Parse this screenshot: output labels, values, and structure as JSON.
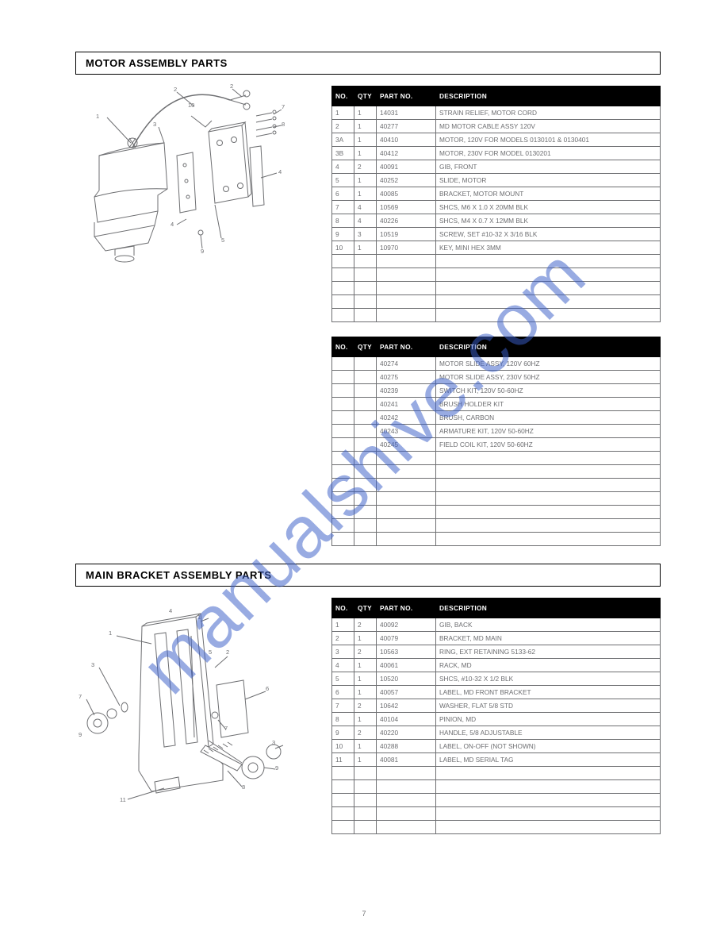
{
  "page_number": "7",
  "watermark_text": "manualshive.com",
  "watermark_color": "#3b5fc9",
  "text_color": "#6d6e71",
  "section1": {
    "title": "MOTOR ASSEMBLY PARTS",
    "table1": {
      "headers": [
        "NO.",
        "QTY",
        "PART NO.",
        "DESCRIPTION"
      ],
      "rows": [
        [
          "1",
          "1",
          "14031",
          "STRAIN RELIEF, MOTOR CORD"
        ],
        [
          "2",
          "1",
          "40277",
          "MD MOTOR CABLE ASSY 120V"
        ],
        [
          "3A",
          "1",
          "40410",
          "MOTOR, 120V FOR MODELS 0130101 & 0130401"
        ],
        [
          "3B",
          "1",
          "40412",
          "MOTOR, 230V FOR MODEL 0130201"
        ],
        [
          "4",
          "2",
          "40091",
          "GIB, FRONT"
        ],
        [
          "5",
          "1",
          "40252",
          "SLIDE, MOTOR"
        ],
        [
          "6",
          "1",
          "40085",
          "BRACKET, MOTOR MOUNT"
        ],
        [
          "7",
          "4",
          "10569",
          "SHCS, M6 X 1.0 X 20MM BLK"
        ],
        [
          "8",
          "4",
          "40226",
          "SHCS, M4 X 0.7 X 12MM BLK"
        ],
        [
          "9",
          "3",
          "10519",
          "SCREW, SET #10-32 X 3/16 BLK"
        ],
        [
          "10",
          "1",
          "10970",
          "KEY, MINI HEX 3MM"
        ],
        [
          "",
          "",
          "",
          ""
        ],
        [
          "",
          "",
          "",
          ""
        ],
        [
          "",
          "",
          "",
          ""
        ],
        [
          "",
          "",
          "",
          ""
        ],
        [
          "",
          "",
          "",
          ""
        ]
      ]
    },
    "table2": {
      "headers": [
        "NO.",
        "QTY",
        "PART NO.",
        "DESCRIPTION"
      ],
      "rows": [
        [
          "",
          "",
          "40274",
          "MOTOR SLIDE ASSY, 120V 60HZ"
        ],
        [
          "",
          "",
          "40275",
          "MOTOR SLIDE ASSY, 230V 50HZ"
        ],
        [
          "",
          "",
          "40239",
          "SWITCH KIT, 120V 50-60HZ"
        ],
        [
          "",
          "",
          "40241",
          "BRUSH HOLDER KIT"
        ],
        [
          "",
          "",
          "40242",
          "BRUSH, CARBON"
        ],
        [
          "",
          "",
          "40243",
          "ARMATURE KIT, 120V 50-60HZ"
        ],
        [
          "",
          "",
          "40245",
          "FIELD COIL KIT, 120V 50-60HZ"
        ],
        [
          "",
          "",
          "",
          ""
        ],
        [
          "",
          "",
          "",
          ""
        ],
        [
          "",
          "",
          "",
          ""
        ],
        [
          "",
          "",
          "",
          ""
        ],
        [
          "",
          "",
          "",
          ""
        ],
        [
          "",
          "",
          "",
          ""
        ],
        [
          "",
          "",
          "",
          ""
        ]
      ]
    }
  },
  "section2": {
    "title": "MAIN BRACKET ASSEMBLY PARTS",
    "table": {
      "headers": [
        "NO.",
        "QTY",
        "PART NO.",
        "DESCRIPTION"
      ],
      "rows": [
        [
          "1",
          "2",
          "40092",
          "GIB, BACK"
        ],
        [
          "2",
          "1",
          "40079",
          "BRACKET, MD MAIN"
        ],
        [
          "3",
          "2",
          "10563",
          "RING, EXT RETAINING 5133-62"
        ],
        [
          "4",
          "1",
          "40061",
          "RACK, MD"
        ],
        [
          "5",
          "1",
          "10520",
          "SHCS, #10-32 X 1/2 BLK"
        ],
        [
          "6",
          "1",
          "40057",
          "LABEL, MD FRONT BRACKET"
        ],
        [
          "7",
          "2",
          "10642",
          "WASHER, FLAT 5/8 STD"
        ],
        [
          "8",
          "1",
          "40104",
          "PINION, MD"
        ],
        [
          "9",
          "2",
          "40220",
          "HANDLE, 5/8 ADJUSTABLE"
        ],
        [
          "10",
          "1",
          "40288",
          "LABEL, ON-OFF (NOT SHOWN)"
        ],
        [
          "11",
          "1",
          "40081",
          "LABEL, MD SERIAL TAG"
        ],
        [
          "",
          "",
          "",
          ""
        ],
        [
          "",
          "",
          "",
          ""
        ],
        [
          "",
          "",
          "",
          ""
        ],
        [
          "",
          "",
          "",
          ""
        ],
        [
          "",
          "",
          "",
          ""
        ]
      ]
    }
  }
}
